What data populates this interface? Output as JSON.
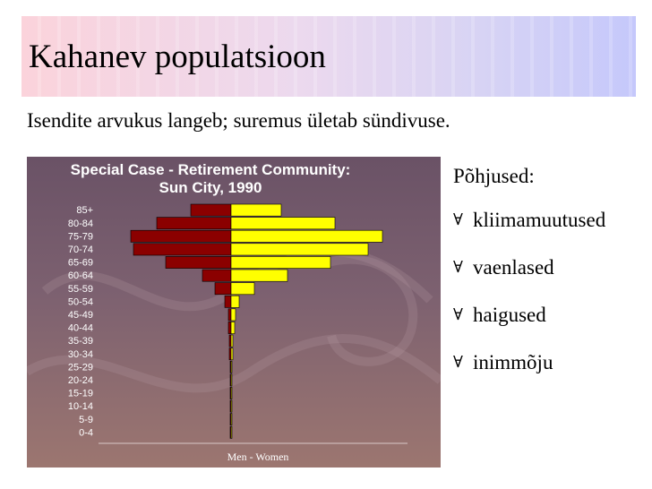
{
  "slide": {
    "title": "Kahanev populatsioon",
    "subtitle": "Isendite arvukus langeb; suremus ületab sündivuse."
  },
  "reasons": {
    "heading": "Põhjused:",
    "bullet_glyph": "∀",
    "items": [
      "kliimamuutused",
      "vaenlased",
      "haigused",
      "inimmõju"
    ]
  },
  "colors": {
    "men_bar": "#8b0000",
    "women_bar": "#ffff00",
    "chart_title": "#ffffff",
    "tick_label": "#ffffff"
  },
  "chart_data": {
    "type": "bar",
    "orientation": "horizontal-pyramid",
    "title": "Special Case - Retirement Community:",
    "subtitle": "Sun City, 1990",
    "xlabel": "Men - Women",
    "ylabel": "",
    "categories": [
      "85+",
      "80-84",
      "75-79",
      "70-74",
      "65-69",
      "60-64",
      "55-59",
      "50-54",
      "45-49",
      "40-44",
      "35-39",
      "30-34",
      "25-29",
      "20-24",
      "15-19",
      "10-14",
      "5-9",
      "0-4"
    ],
    "series": [
      {
        "name": "Men",
        "values": [
          45,
          83,
          112,
          109,
          73,
          32,
          18,
          7,
          3,
          3,
          2,
          2,
          1,
          1,
          0.5,
          0.5,
          0.3,
          0.3
        ]
      },
      {
        "name": "Women",
        "values": [
          56,
          116,
          169,
          153,
          111,
          63,
          26,
          9,
          5,
          4,
          2,
          2,
          1,
          1,
          0.5,
          0.5,
          0.3,
          0.3
        ]
      }
    ],
    "grid": false,
    "legend": "none"
  }
}
